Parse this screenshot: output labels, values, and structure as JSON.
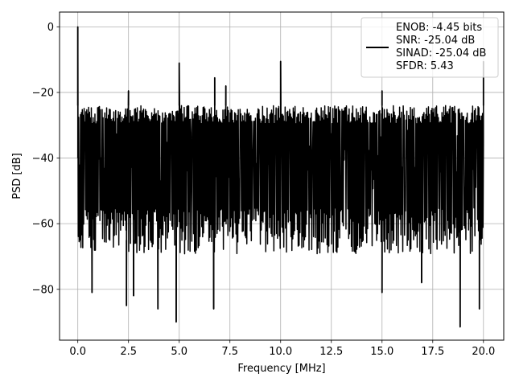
{
  "chart_data": {
    "type": "line",
    "xlabel": "Frequency [MHz]",
    "ylabel": "PSD [dB]",
    "xlim": [
      -0.9,
      21.0
    ],
    "ylim": [
      -95.5,
      4.5
    ],
    "grid": true,
    "x_ticks": [
      0.0,
      2.5,
      5.0,
      7.5,
      10.0,
      12.5,
      15.0,
      17.5,
      20.0
    ],
    "x_tick_labels": [
      "0.0",
      "2.5",
      "5.0",
      "7.5",
      "10.0",
      "12.5",
      "15.0",
      "17.5",
      "20.0"
    ],
    "y_ticks": [
      0,
      -20,
      -40,
      -60,
      -80
    ],
    "y_tick_labels": [
      "0",
      "−20",
      "−40",
      "−60",
      "−80"
    ],
    "series": [
      {
        "color": "#000000",
        "noise_floor_db": {
          "upper": -24,
          "lower": -65,
          "median": -40
        },
        "spurs": [
          {
            "x": 0.0,
            "y": 0.0
          },
          {
            "x": 2.5,
            "y": -19.5
          },
          {
            "x": 5.0,
            "y": -11.0
          },
          {
            "x": 6.75,
            "y": -15.5
          },
          {
            "x": 7.3,
            "y": -18.0
          },
          {
            "x": 10.0,
            "y": -10.5
          },
          {
            "x": 15.0,
            "y": -19.5
          },
          {
            "x": 20.0,
            "y": -10.5
          }
        ],
        "dips": [
          {
            "x": 0.7,
            "y": -81.0
          },
          {
            "x": 2.4,
            "y": -85.0
          },
          {
            "x": 2.75,
            "y": -82.0
          },
          {
            "x": 3.95,
            "y": -86.0
          },
          {
            "x": 4.85,
            "y": -90.0
          },
          {
            "x": 6.7,
            "y": -86.0
          },
          {
            "x": 15.0,
            "y": -81.0
          },
          {
            "x": 16.95,
            "y": -78.0
          },
          {
            "x": 18.85,
            "y": -91.5
          },
          {
            "x": 19.8,
            "y": -86.0
          }
        ]
      }
    ],
    "legend": {
      "position": "top-right",
      "entries": [
        "ENOB: -4.45 bits",
        "SNR: -25.04 dB",
        "SINAD: -25.04 dB",
        "SFDR: 5.43"
      ]
    }
  }
}
